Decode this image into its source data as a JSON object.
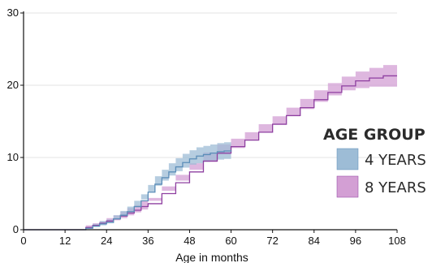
{
  "chart_data": {
    "type": "line",
    "title": "",
    "xlabel": "Age in months",
    "ylabel": "",
    "xlim": [
      0,
      108
    ],
    "ylim": [
      0,
      30
    ],
    "xticks": [
      0,
      12,
      24,
      36,
      48,
      60,
      72,
      84,
      96,
      108
    ],
    "yticks": [
      0,
      10,
      20,
      30
    ],
    "grid": "horizontal",
    "legend": {
      "title": "AGE GROUP",
      "placement": "right"
    },
    "series": [
      {
        "name": "4 YEARS",
        "color": "#5b8db8",
        "band_color": "#9dbcd6",
        "x": [
          0,
          12,
          16,
          18,
          20,
          22,
          24,
          26,
          28,
          30,
          32,
          34,
          36,
          38,
          40,
          42,
          44,
          46,
          48,
          50,
          52,
          54,
          56,
          58,
          60
        ],
        "y": [
          0,
          0,
          0,
          0.2,
          0.5,
          0.8,
          1.0,
          1.5,
          2.0,
          2.5,
          3.2,
          4.0,
          5.2,
          6.3,
          7.2,
          8.0,
          8.7,
          9.3,
          9.8,
          10.2,
          10.4,
          10.6,
          10.8,
          10.9,
          11.0
        ],
        "lower": [
          0,
          0,
          0,
          0.0,
          0.2,
          0.4,
          0.6,
          1.0,
          1.4,
          1.8,
          2.4,
          3.1,
          4.2,
          5.2,
          6.1,
          6.8,
          7.5,
          8.1,
          8.6,
          9.0,
          9.2,
          9.4,
          9.6,
          9.7,
          9.8
        ],
        "upper": [
          0,
          0,
          0,
          0.4,
          0.8,
          1.2,
          1.4,
          2.0,
          2.6,
          3.2,
          4.0,
          4.9,
          6.2,
          7.4,
          8.3,
          9.2,
          9.9,
          10.5,
          11.0,
          11.4,
          11.6,
          11.8,
          12.0,
          12.1,
          12.2
        ]
      },
      {
        "name": "8 YEARS",
        "color": "#8e3fa0",
        "band_color": "#d39fd4",
        "x": [
          0,
          12,
          16,
          18,
          20,
          22,
          24,
          26,
          28,
          30,
          32,
          34,
          36,
          40,
          44,
          48,
          52,
          56,
          60,
          64,
          68,
          72,
          76,
          80,
          84,
          88,
          92,
          96,
          100,
          104,
          108
        ],
        "y": [
          0,
          0,
          0,
          0.3,
          0.6,
          0.9,
          1.2,
          1.5,
          1.9,
          2.3,
          2.7,
          3.2,
          3.6,
          5.0,
          6.5,
          8.0,
          9.5,
          10.6,
          11.5,
          12.4,
          13.5,
          14.6,
          15.8,
          16.9,
          18.0,
          19.0,
          19.9,
          20.6,
          21.0,
          21.3,
          21.3
        ],
        "lower": [
          0,
          0,
          0,
          0.0,
          0.3,
          0.6,
          0.8,
          1.0,
          1.3,
          1.6,
          2.0,
          2.4,
          2.8,
          4.0,
          5.4,
          6.8,
          8.3,
          9.4,
          10.4,
          11.3,
          12.4,
          13.5,
          14.6,
          15.7,
          16.7,
          17.7,
          18.6,
          19.3,
          19.6,
          19.8,
          19.8
        ],
        "upper": [
          0,
          0,
          0,
          0.6,
          0.9,
          1.2,
          1.6,
          2.0,
          2.5,
          3.0,
          3.4,
          4.0,
          4.4,
          6.0,
          7.6,
          9.2,
          10.7,
          11.8,
          12.6,
          13.5,
          14.6,
          15.7,
          16.9,
          18.1,
          19.3,
          20.3,
          21.2,
          21.9,
          22.4,
          22.8,
          22.8
        ]
      }
    ]
  }
}
